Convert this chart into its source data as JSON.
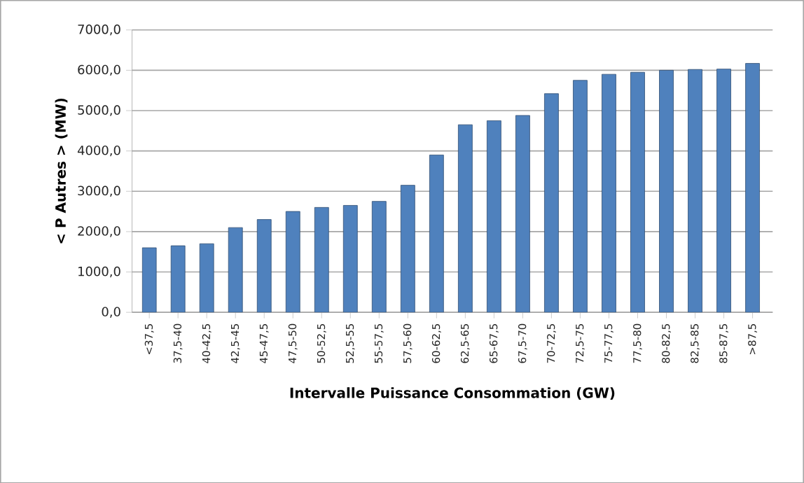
{
  "chart_data": {
    "type": "bar",
    "xlabel": "Intervalle Puissance Consommation (GW)",
    "ylabel": "< P Autres > (MW)",
    "categories": [
      "<37,5",
      "37,5-40",
      "40-42,5",
      "42,5-45",
      "45-47,5",
      "47,5-50",
      "50-52,5",
      "52,5-55",
      "55-57,5",
      "57,5-60",
      "60-62,5",
      "62,5-65",
      "65-67,5",
      "67,5-70",
      "70-72,5",
      "72,5-75",
      "75-77,5",
      "77,5-80",
      "80-82,5",
      "82,5-85",
      "85-87,5",
      ">87,5"
    ],
    "values": [
      1600,
      1650,
      1700,
      2100,
      2300,
      2500,
      2600,
      2650,
      2750,
      3150,
      3900,
      4650,
      4750,
      4880,
      5420,
      5750,
      5900,
      5950,
      6000,
      6020,
      6030,
      6170
    ],
    "color": "#4f81bd",
    "ylim": [
      0,
      7000
    ],
    "yticks": [
      {
        "value": 0,
        "label": "0,0"
      },
      {
        "value": 1000,
        "label": "1000,0"
      },
      {
        "value": 2000,
        "label": "2000,0"
      },
      {
        "value": 3000,
        "label": "3000,0"
      },
      {
        "value": 4000,
        "label": "4000,0"
      },
      {
        "value": 5000,
        "label": "5000,0"
      },
      {
        "value": 6000,
        "label": "6000,0"
      },
      {
        "value": 7000,
        "label": "7000,0"
      }
    ],
    "grid": "y"
  }
}
